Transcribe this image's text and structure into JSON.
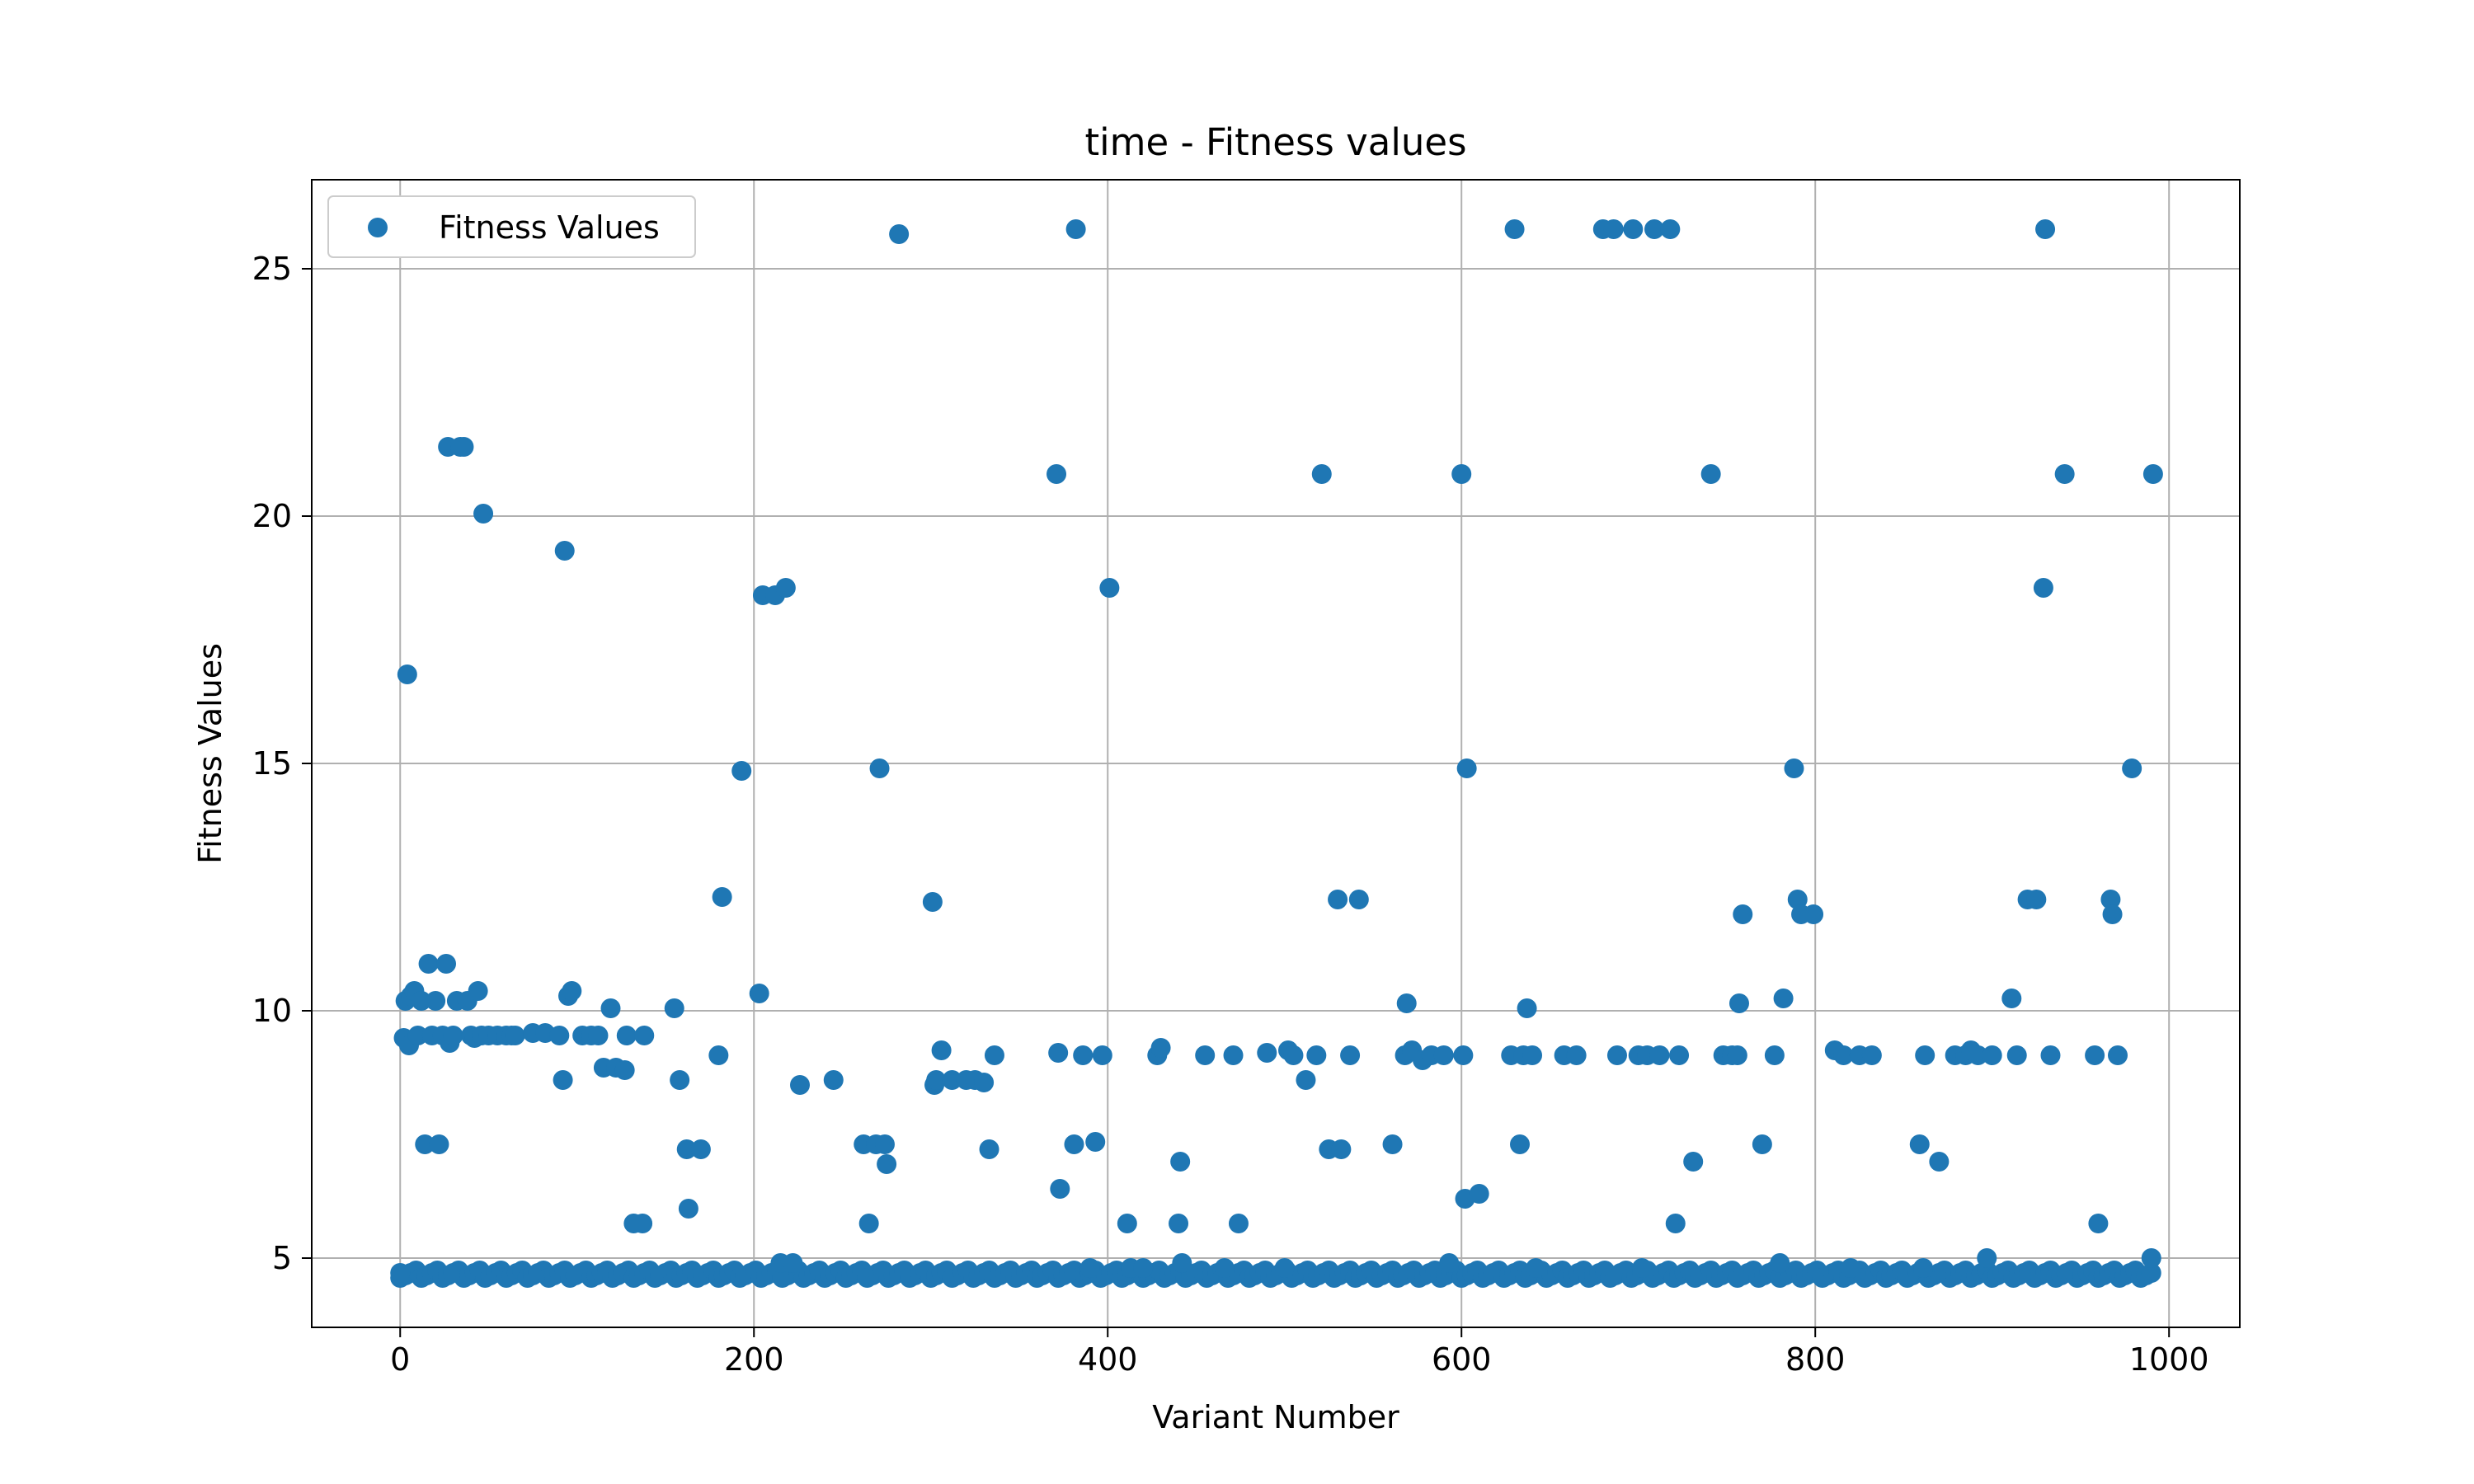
{
  "chart_data": {
    "type": "scatter",
    "title": "time - Fitness values",
    "xlabel": "Variant Number",
    "ylabel": "Fitness Values",
    "xlim": [
      -50,
      1040
    ],
    "ylim": [
      3.6,
      26.8
    ],
    "xticks": [
      0,
      200,
      400,
      600,
      800,
      1000
    ],
    "xtick_labels": [
      "0",
      "200",
      "400",
      "600",
      "800",
      "1000"
    ],
    "yticks": [
      5,
      10,
      15,
      20,
      25
    ],
    "ytick_labels": [
      "5",
      "10",
      "15",
      "20",
      "25"
    ],
    "grid": true,
    "legend": {
      "position": "top-left",
      "entries": [
        "Fitness Values"
      ]
    },
    "series": [
      {
        "name": "Fitness Values",
        "color": "#1f77b4",
        "points": [
          [
            0,
            4.7
          ],
          [
            2,
            9.45
          ],
          [
            3,
            10.2
          ],
          [
            4,
            16.8
          ],
          [
            5,
            9.3
          ],
          [
            6,
            10.3
          ],
          [
            8,
            10.4
          ],
          [
            10,
            9.5
          ],
          [
            12,
            10.2
          ],
          [
            14,
            7.3
          ],
          [
            16,
            10.95
          ],
          [
            18,
            9.5
          ],
          [
            20,
            10.2
          ],
          [
            22,
            7.3
          ],
          [
            24,
            9.5
          ],
          [
            26,
            10.95
          ],
          [
            27,
            21.4
          ],
          [
            28,
            9.35
          ],
          [
            30,
            9.5
          ],
          [
            32,
            10.2
          ],
          [
            34,
            21.4
          ],
          [
            36,
            21.4
          ],
          [
            38,
            10.2
          ],
          [
            40,
            9.5
          ],
          [
            42,
            9.45
          ],
          [
            44,
            10.4
          ],
          [
            46,
            9.5
          ],
          [
            47,
            20.05
          ],
          [
            50,
            9.5
          ],
          [
            55,
            9.5
          ],
          [
            60,
            9.5
          ],
          [
            63,
            9.5
          ],
          [
            65,
            9.5
          ],
          [
            75,
            9.55
          ],
          [
            82,
            9.55
          ],
          [
            90,
            9.5
          ],
          [
            92,
            8.6
          ],
          [
            93,
            19.3
          ],
          [
            95,
            10.3
          ],
          [
            97,
            10.4
          ],
          [
            103,
            9.5
          ],
          [
            108,
            9.5
          ],
          [
            112,
            9.5
          ],
          [
            115,
            8.85
          ],
          [
            119,
            10.05
          ],
          [
            122,
            8.85
          ],
          [
            127,
            8.8
          ],
          [
            128,
            9.5
          ],
          [
            132,
            5.7
          ],
          [
            137,
            5.7
          ],
          [
            138,
            9.5
          ],
          [
            155,
            10.05
          ],
          [
            158,
            8.6
          ],
          [
            162,
            7.2
          ],
          [
            163,
            6.0
          ],
          [
            170,
            7.2
          ],
          [
            180,
            9.1
          ],
          [
            182,
            12.3
          ],
          [
            193,
            14.85
          ],
          [
            203,
            10.35
          ],
          [
            205,
            18.4
          ],
          [
            212,
            18.4
          ],
          [
            218,
            18.55
          ],
          [
            215,
            4.9
          ],
          [
            222,
            4.9
          ],
          [
            226,
            8.5
          ],
          [
            245,
            8.6
          ],
          [
            262,
            7.3
          ],
          [
            265,
            5.7
          ],
          [
            269,
            7.3
          ],
          [
            271,
            14.9
          ],
          [
            274,
            7.3
          ],
          [
            275,
            6.9
          ],
          [
            282,
            25.7
          ],
          [
            301,
            12.2
          ],
          [
            302,
            8.5
          ],
          [
            303,
            8.6
          ],
          [
            306,
            9.2
          ],
          [
            312,
            8.6
          ],
          [
            320,
            8.6
          ],
          [
            325,
            8.6
          ],
          [
            330,
            8.55
          ],
          [
            333,
            7.2
          ],
          [
            336,
            9.1
          ],
          [
            371,
            20.85
          ],
          [
            372,
            9.15
          ],
          [
            373,
            6.4
          ],
          [
            381,
            7.3
          ],
          [
            382,
            25.8
          ],
          [
            386,
            9.1
          ],
          [
            390,
            4.8
          ],
          [
            393,
            7.35
          ],
          [
            397,
            9.1
          ],
          [
            401,
            18.55
          ],
          [
            411,
            5.7
          ],
          [
            413,
            4.8
          ],
          [
            420,
            4.8
          ],
          [
            428,
            9.1
          ],
          [
            430,
            9.25
          ],
          [
            440,
            5.7
          ],
          [
            441,
            6.95
          ],
          [
            442,
            4.9
          ],
          [
            455,
            9.1
          ],
          [
            466,
            4.8
          ],
          [
            471,
            9.1
          ],
          [
            474,
            5.7
          ],
          [
            490,
            9.15
          ],
          [
            500,
            4.8
          ],
          [
            502,
            9.2
          ],
          [
            505,
            9.1
          ],
          [
            512,
            8.6
          ],
          [
            518,
            9.1
          ],
          [
            521,
            20.85
          ],
          [
            525,
            7.2
          ],
          [
            530,
            12.25
          ],
          [
            532,
            7.2
          ],
          [
            537,
            9.1
          ],
          [
            542,
            12.25
          ],
          [
            561,
            7.3
          ],
          [
            568,
            9.1
          ],
          [
            569,
            10.15
          ],
          [
            572,
            9.2
          ],
          [
            578,
            9.0
          ],
          [
            583,
            9.1
          ],
          [
            590,
            9.1
          ],
          [
            593,
            4.9
          ],
          [
            600,
            20.85
          ],
          [
            601,
            9.1
          ],
          [
            602,
            6.2
          ],
          [
            603,
            14.9
          ],
          [
            610,
            6.3
          ],
          [
            628,
            9.1
          ],
          [
            630,
            25.8
          ],
          [
            633,
            7.3
          ],
          [
            635,
            9.1
          ],
          [
            637,
            10.05
          ],
          [
            640,
            9.1
          ],
          [
            642,
            4.8
          ],
          [
            658,
            9.1
          ],
          [
            665,
            9.1
          ],
          [
            680,
            25.8
          ],
          [
            686,
            25.8
          ],
          [
            688,
            9.1
          ],
          [
            697,
            25.8
          ],
          [
            700,
            9.1
          ],
          [
            702,
            4.8
          ],
          [
            705,
            9.1
          ],
          [
            709,
            25.8
          ],
          [
            712,
            9.1
          ],
          [
            718,
            25.8
          ],
          [
            721,
            5.7
          ],
          [
            723,
            9.1
          ],
          [
            731,
            6.95
          ],
          [
            741,
            20.85
          ],
          [
            748,
            9.1
          ],
          [
            753,
            9.1
          ],
          [
            756,
            9.1
          ],
          [
            757,
            10.15
          ],
          [
            759,
            11.95
          ],
          [
            770,
            7.3
          ],
          [
            777,
            9.1
          ],
          [
            780,
            4.9
          ],
          [
            782,
            10.25
          ],
          [
            788,
            14.9
          ],
          [
            790,
            12.25
          ],
          [
            792,
            11.95
          ],
          [
            799,
            11.95
          ],
          [
            811,
            9.2
          ],
          [
            816,
            9.1
          ],
          [
            820,
            4.8
          ],
          [
            825,
            9.1
          ],
          [
            832,
            9.1
          ],
          [
            859,
            7.3
          ],
          [
            861,
            4.8
          ],
          [
            862,
            9.1
          ],
          [
            870,
            6.95
          ],
          [
            879,
            9.1
          ],
          [
            885,
            9.1
          ],
          [
            888,
            9.2
          ],
          [
            892,
            9.1
          ],
          [
            897,
            5.0
          ],
          [
            900,
            9.1
          ],
          [
            911,
            10.25
          ],
          [
            914,
            9.1
          ],
          [
            920,
            12.25
          ],
          [
            925,
            12.25
          ],
          [
            929,
            18.55
          ],
          [
            930,
            25.8
          ],
          [
            933,
            9.1
          ],
          [
            941,
            20.85
          ],
          [
            958,
            9.1
          ],
          [
            960,
            5.7
          ],
          [
            967,
            12.25
          ],
          [
            968,
            11.95
          ],
          [
            971,
            9.1
          ],
          [
            979,
            14.9
          ],
          [
            990,
            5.0
          ],
          [
            991,
            20.85
          ]
        ],
        "baseline": {
          "x_from": 0,
          "x_to": 990,
          "y_values": [
            4.6,
            4.65,
            4.7,
            4.75
          ]
        }
      }
    ]
  }
}
